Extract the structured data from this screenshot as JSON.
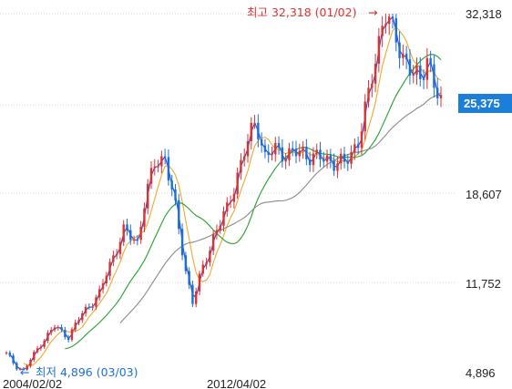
{
  "chart_data": {
    "type": "candlestick",
    "title": "",
    "xlabel": "",
    "ylabel": "",
    "ylim": [
      4896,
      32318
    ],
    "y_ticks": [
      "32,318",
      "25,375",
      "18,607",
      "11,752",
      "4,896"
    ],
    "x_ticks": [
      "2004/02/02",
      "2012/04/02"
    ],
    "current_value": "25,375",
    "high_annotation": "최고 32,318 (01/02)",
    "low_annotation": "최저 4,896 (03/03)",
    "gridlines": "horizontal dotted",
    "colors": {
      "up": "#e03131",
      "down": "#1c6fd9",
      "ma_short": "#2b45c4",
      "ma_mid": "#f0a830",
      "ma_long": "#22a12a",
      "ma_longest": "#8a8a8a",
      "current_box": "#1c7ed6"
    },
    "price_path": [
      [
        0,
        6200
      ],
      [
        3,
        5200
      ],
      [
        5,
        4896
      ],
      [
        10,
        7000
      ],
      [
        14,
        8300
      ],
      [
        18,
        7500
      ],
      [
        22,
        9300
      ],
      [
        27,
        10800
      ],
      [
        30,
        13100
      ],
      [
        34,
        15600
      ],
      [
        38,
        14800
      ],
      [
        40,
        17800
      ],
      [
        43,
        20800
      ],
      [
        46,
        21400
      ],
      [
        49,
        17300
      ],
      [
        52,
        12600
      ],
      [
        54,
        10200
      ],
      [
        57,
        12800
      ],
      [
        60,
        15200
      ],
      [
        64,
        17300
      ],
      [
        67,
        20000
      ],
      [
        70,
        22400
      ],
      [
        72,
        24000
      ],
      [
        73,
        23600
      ],
      [
        75,
        21200
      ],
      [
        78,
        21900
      ],
      [
        82,
        21500
      ],
      [
        86,
        21700
      ],
      [
        90,
        21200
      ],
      [
        94,
        21100
      ],
      [
        98,
        20700
      ],
      [
        102,
        22600
      ],
      [
        105,
        25900
      ],
      [
        107,
        28900
      ],
      [
        109,
        31700
      ],
      [
        110,
        32318
      ],
      [
        112,
        30800
      ],
      [
        115,
        29200
      ],
      [
        118,
        27600
      ],
      [
        120,
        27000
      ],
      [
        122,
        29300
      ],
      [
        124,
        26800
      ],
      [
        126,
        25375
      ]
    ],
    "series": [
      {
        "name": "",
        "window": 5
      },
      {
        "name": "",
        "window": 20
      },
      {
        "name": "",
        "window": 60
      },
      {
        "name": "",
        "window": 120
      }
    ]
  }
}
